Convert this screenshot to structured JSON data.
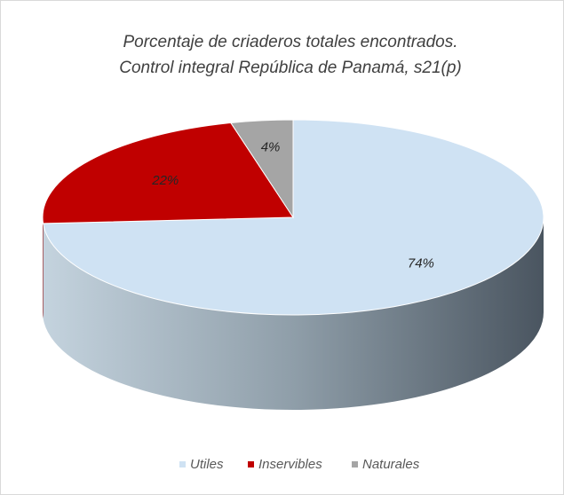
{
  "chart_data": {
    "type": "pie3d",
    "title": [
      "Porcentaje de criaderos totales encontrados.",
      "Control integral República de Panamá, s21(p)"
    ],
    "categories": [
      "Utiles",
      "Inservibles",
      "Naturales"
    ],
    "values": [
      74,
      22,
      4
    ],
    "value_labels": [
      "74%",
      "22%",
      "4%"
    ],
    "colors": [
      "#cfe2f3",
      "#c00000",
      "#a5a5a5"
    ],
    "legend": "bottom"
  }
}
